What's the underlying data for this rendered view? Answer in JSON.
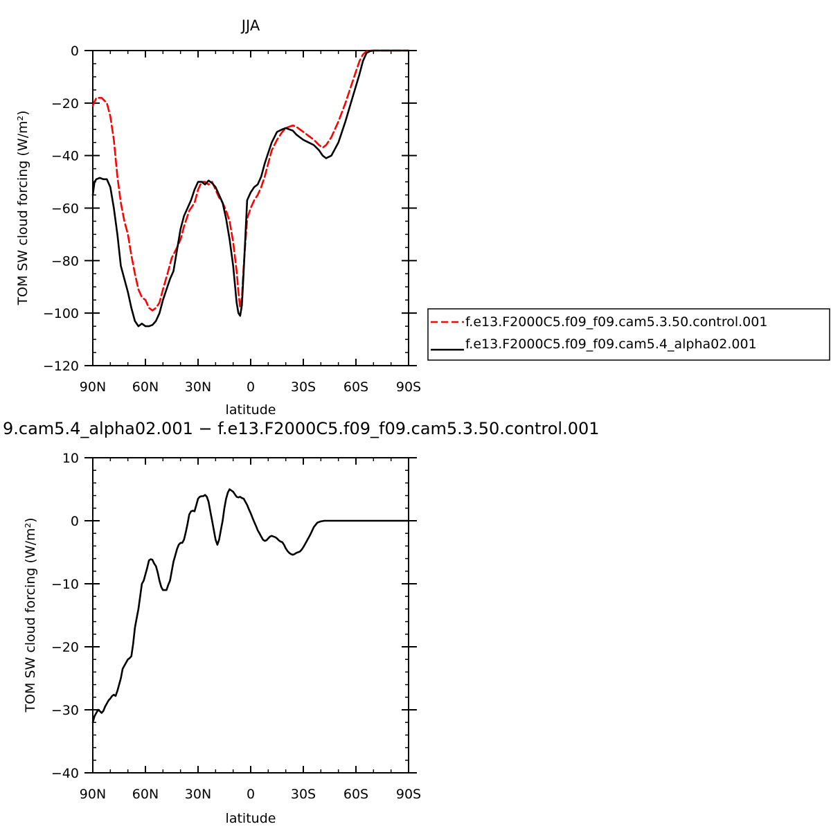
{
  "chart_data": [
    {
      "type": "line",
      "title": "JJA",
      "xlabel": "latitude",
      "ylabel": "TOM SW cloud forcing (W/m²)",
      "ylim": [
        -120,
        0
      ],
      "xlim": [
        90,
        -90
      ],
      "x_ticks": [
        90,
        60,
        30,
        0,
        -30,
        -60,
        -90
      ],
      "x_tick_labels": [
        "90N",
        "60N",
        "30N",
        "0",
        "30S",
        "60S",
        "90S"
      ],
      "y_ticks": [
        0,
        -20,
        -40,
        -60,
        -80,
        -100,
        -120
      ],
      "y_tick_labels": [
        "0",
        "−20",
        "−40",
        "−60",
        "−80",
        "−100",
        "−120"
      ],
      "legend_position": "right",
      "series": [
        {
          "name": "f.e13.F2000C5.f09_f09.cam5.3.50.control.001",
          "color": "#ff0000",
          "dash": "dashed",
          "x": [
            90,
            88,
            85,
            82,
            80,
            78,
            76,
            74,
            72,
            70,
            68,
            66,
            64,
            62,
            60,
            58,
            56,
            54,
            52,
            50,
            47,
            45,
            42,
            40,
            38,
            35,
            32,
            30,
            28,
            26,
            24,
            22,
            20,
            18,
            16,
            14,
            12,
            10,
            8,
            7,
            6,
            5,
            4,
            2,
            0,
            -2,
            -4,
            -6,
            -8,
            -10,
            -12,
            -15,
            -18,
            -20,
            -22,
            -24,
            -26,
            -28,
            -30,
            -33,
            -36,
            -39,
            -41,
            -43,
            -46,
            -50,
            -54,
            -58,
            -62,
            -64,
            -66,
            -68,
            -70,
            -75,
            -80,
            -85,
            -90
          ],
          "y": [
            -21,
            -18,
            -18,
            -20,
            -25,
            -34,
            -48,
            -58,
            -65,
            -70,
            -78,
            -85,
            -91,
            -94,
            -95,
            -98,
            -99,
            -98,
            -96,
            -91,
            -84,
            -79,
            -75,
            -72,
            -67,
            -61,
            -58,
            -53,
            -50,
            -50,
            -51,
            -50,
            -53,
            -56,
            -58,
            -61,
            -65,
            -73,
            -84,
            -92,
            -98,
            -94,
            -82,
            -64,
            -60,
            -57,
            -55,
            -52,
            -48,
            -43,
            -38,
            -34,
            -31,
            -29.5,
            -29,
            -28.5,
            -29,
            -30,
            -31,
            -32.5,
            -34,
            -36,
            -37,
            -36,
            -33,
            -27,
            -20,
            -12,
            -4,
            -1.5,
            -0.3,
            0,
            0,
            0,
            0,
            0,
            0
          ]
        },
        {
          "name": "f.e13.F2000C5.f09_f09.cam5.4_alpha02.001",
          "color": "#000000",
          "dash": "solid",
          "x": [
            90,
            89,
            88,
            86,
            84,
            82,
            80,
            78,
            76,
            74,
            72,
            70,
            68,
            66,
            64,
            62,
            60,
            58,
            56,
            54,
            52,
            50,
            48,
            46,
            44,
            42,
            40,
            38,
            36,
            34,
            32,
            30,
            28,
            26,
            24,
            22,
            20,
            18,
            16,
            14,
            12,
            10,
            8,
            7,
            6,
            5,
            4,
            2,
            0,
            -2,
            -4,
            -6,
            -8,
            -10,
            -12,
            -15,
            -18,
            -20,
            -22,
            -24,
            -26,
            -28,
            -30,
            -33,
            -36,
            -39,
            -41,
            -43,
            -46,
            -50,
            -54,
            -58,
            -62,
            -64,
            -66,
            -68,
            -70,
            -75,
            -80,
            -85,
            -90
          ],
          "y": [
            -55,
            -50,
            -49,
            -48.5,
            -49,
            -49,
            -52,
            -60,
            -70,
            -82,
            -87,
            -92,
            -98,
            -103,
            -105,
            -104,
            -105,
            -105,
            -104.5,
            -103,
            -100,
            -95,
            -91,
            -87,
            -84,
            -76,
            -68,
            -63,
            -60,
            -57,
            -53,
            -50,
            -50,
            -51,
            -49.5,
            -50.5,
            -52,
            -55,
            -58,
            -64,
            -72,
            -82,
            -96,
            -100,
            -101,
            -97,
            -84,
            -57,
            -54,
            -52,
            -51,
            -48,
            -43,
            -39,
            -35,
            -31,
            -30,
            -29.5,
            -30,
            -30.5,
            -32,
            -33,
            -34,
            -35,
            -36,
            -38,
            -40,
            -41,
            -40,
            -35,
            -27,
            -18,
            -9,
            -4,
            -1,
            -0.2,
            0,
            0,
            0,
            0,
            0
          ]
        }
      ]
    },
    {
      "type": "line",
      "title": "9.cam5.4_alpha02.001 − f.e13.F2000C5.f09_f09.cam5.3.50.control.001",
      "xlabel": "latitude",
      "ylabel": "TOM SW cloud forcing (W/m²)",
      "ylim": [
        -40,
        10
      ],
      "xlim": [
        90,
        -90
      ],
      "x_ticks": [
        90,
        60,
        30,
        0,
        -30,
        -60,
        -90
      ],
      "x_tick_labels": [
        "90N",
        "60N",
        "30N",
        "0",
        "30S",
        "60S",
        "90S"
      ],
      "y_ticks": [
        10,
        0,
        -10,
        -20,
        -30,
        -40
      ],
      "y_tick_labels": [
        "10",
        "0",
        "−10",
        "−20",
        "−30",
        "−40"
      ],
      "series": [
        {
          "color": "#000000",
          "dash": "solid",
          "x": [
            90,
            89,
            88,
            87,
            86,
            85,
            84,
            83,
            82,
            81,
            80,
            79,
            78,
            77,
            76,
            75,
            74,
            73,
            72,
            71,
            70,
            69,
            68,
            67,
            66,
            65,
            64,
            63,
            62,
            61,
            60,
            59,
            58,
            57,
            56,
            55,
            54,
            53,
            52,
            51,
            50,
            49,
            48,
            47,
            46,
            45,
            44,
            43,
            42,
            41,
            40,
            39,
            38,
            37,
            36,
            35,
            34,
            33,
            32,
            31,
            30,
            29,
            28,
            27,
            26,
            25,
            24,
            23,
            22,
            21,
            20,
            19,
            18,
            17,
            16,
            15,
            14,
            13,
            12,
            11,
            10,
            9,
            8,
            7,
            6,
            5,
            4,
            3,
            2,
            1,
            0,
            -1,
            -2,
            -3,
            -4,
            -5,
            -6,
            -7,
            -8,
            -9,
            -10,
            -11,
            -12,
            -13,
            -14,
            -15,
            -16,
            -17,
            -18,
            -19,
            -20,
            -21,
            -22,
            -23,
            -24,
            -25,
            -26,
            -27,
            -28,
            -29,
            -30,
            -32,
            -34,
            -36,
            -38,
            -40,
            -42,
            -44,
            -46,
            -48,
            -50,
            -52,
            -54,
            -56,
            -58,
            -60,
            -62,
            -64,
            -66,
            -68,
            -70,
            -75,
            -80,
            -85,
            -90
          ],
          "y": [
            -32,
            -31,
            -30.5,
            -30,
            -30.2,
            -30.5,
            -30.2,
            -29.5,
            -29,
            -28.5,
            -28.2,
            -27.8,
            -27.6,
            -27.8,
            -27,
            -26,
            -25,
            -23.5,
            -23,
            -22.5,
            -22,
            -21.8,
            -21.5,
            -19.5,
            -17,
            -15.5,
            -14,
            -12,
            -10,
            -9.5,
            -8.5,
            -7.5,
            -6.3,
            -6.1,
            -6.2,
            -6.8,
            -7.2,
            -8.2,
            -9.5,
            -10.5,
            -11,
            -11,
            -11,
            -10.2,
            -9.5,
            -8,
            -6.5,
            -5.5,
            -4.5,
            -3.8,
            -3.5,
            -3.5,
            -3,
            -1.8,
            -0.5,
            1,
            1.5,
            1.6,
            1.5,
            2.5,
            3.5,
            3.8,
            3.9,
            3.9,
            4.1,
            3.8,
            3,
            1.5,
            0,
            -1.5,
            -3,
            -3.8,
            -3,
            -1.5,
            0,
            2,
            3.5,
            4.5,
            5,
            4.8,
            4.6,
            4.2,
            3.8,
            3.7,
            3.8,
            3.6,
            3.5,
            3,
            2.5,
            1.8,
            1.2,
            0.5,
            -0.2,
            -0.8,
            -1.5,
            -2,
            -2.5,
            -3,
            -3.2,
            -3.1,
            -2.8,
            -2.5,
            -2.4,
            -2.5,
            -2.6,
            -2.8,
            -3.1,
            -3.3,
            -3.4,
            -3.8,
            -4.4,
            -4.8,
            -5.1,
            -5.3,
            -5.4,
            -5.3,
            -5.1,
            -5,
            -4.9,
            -4.6,
            -4.2,
            -3.2,
            -2.2,
            -1,
            -0.3,
            -0.1,
            0,
            0,
            0,
            0,
            0,
            0,
            0,
            0,
            0,
            0,
            0,
            0,
            0,
            0,
            0,
            0,
            0,
            0,
            0
          ]
        }
      ]
    }
  ]
}
